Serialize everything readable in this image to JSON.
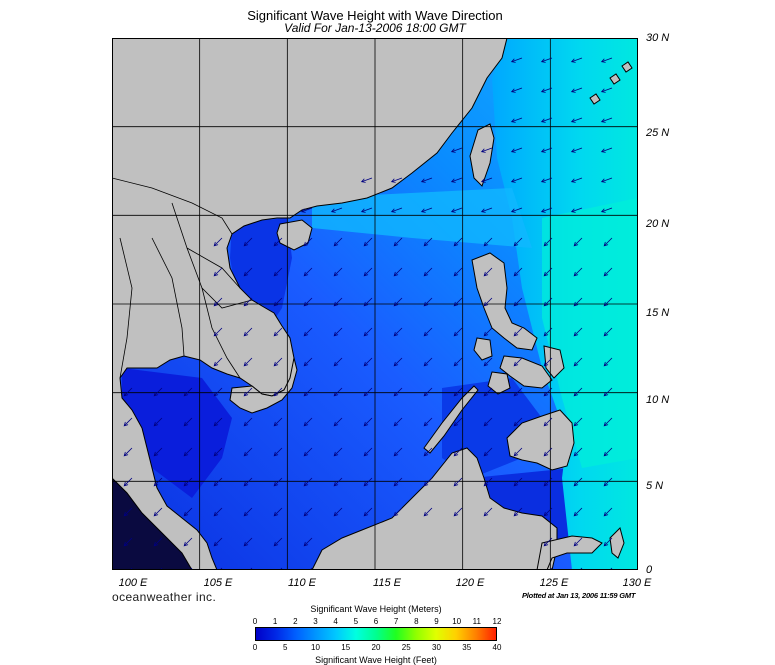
{
  "title": "Significant Wave Height with Wave Direction",
  "subtitle": "Valid For Jan-13-2006 18:00 GMT",
  "map": {
    "lon_range": [
      100,
      130
    ],
    "lat_range": [
      0,
      30
    ],
    "graticule_step_deg": 5,
    "lon_labels": [
      "100 E",
      "105 E",
      "110 E",
      "115 E",
      "120 E",
      "125 E",
      "130 E"
    ],
    "lat_labels": [
      "30 N",
      "25 N",
      "20 N",
      "15 N",
      "10 N",
      "5 N",
      "0"
    ],
    "land_color": "#c0c0c0",
    "coast_color": "#000000",
    "arrow_color": "#000080",
    "dominant_wave_direction": "from northeast"
  },
  "branding": "oceanweather inc.",
  "plotted": "Plotted at Jan 13, 2006 11:59 GMT",
  "colorbar": {
    "label_meters": "Significant Wave Height (Meters)",
    "label_feet": "Significant Wave Height (Feet)",
    "meters_ticks": [
      "0",
      "1",
      "2",
      "3",
      "4",
      "5",
      "6",
      "7",
      "8",
      "9",
      "10",
      "11",
      "12"
    ],
    "feet_ticks": [
      "0",
      "5",
      "10",
      "15",
      "20",
      "25",
      "30",
      "35",
      "40"
    ],
    "colors": [
      "#0000c8",
      "#0028e6",
      "#0060ff",
      "#0096ff",
      "#00c8ff",
      "#00ffe0",
      "#00ff90",
      "#20ff20",
      "#90ff00",
      "#e0ff00",
      "#ffd000",
      "#ff8000",
      "#ff2000"
    ]
  }
}
